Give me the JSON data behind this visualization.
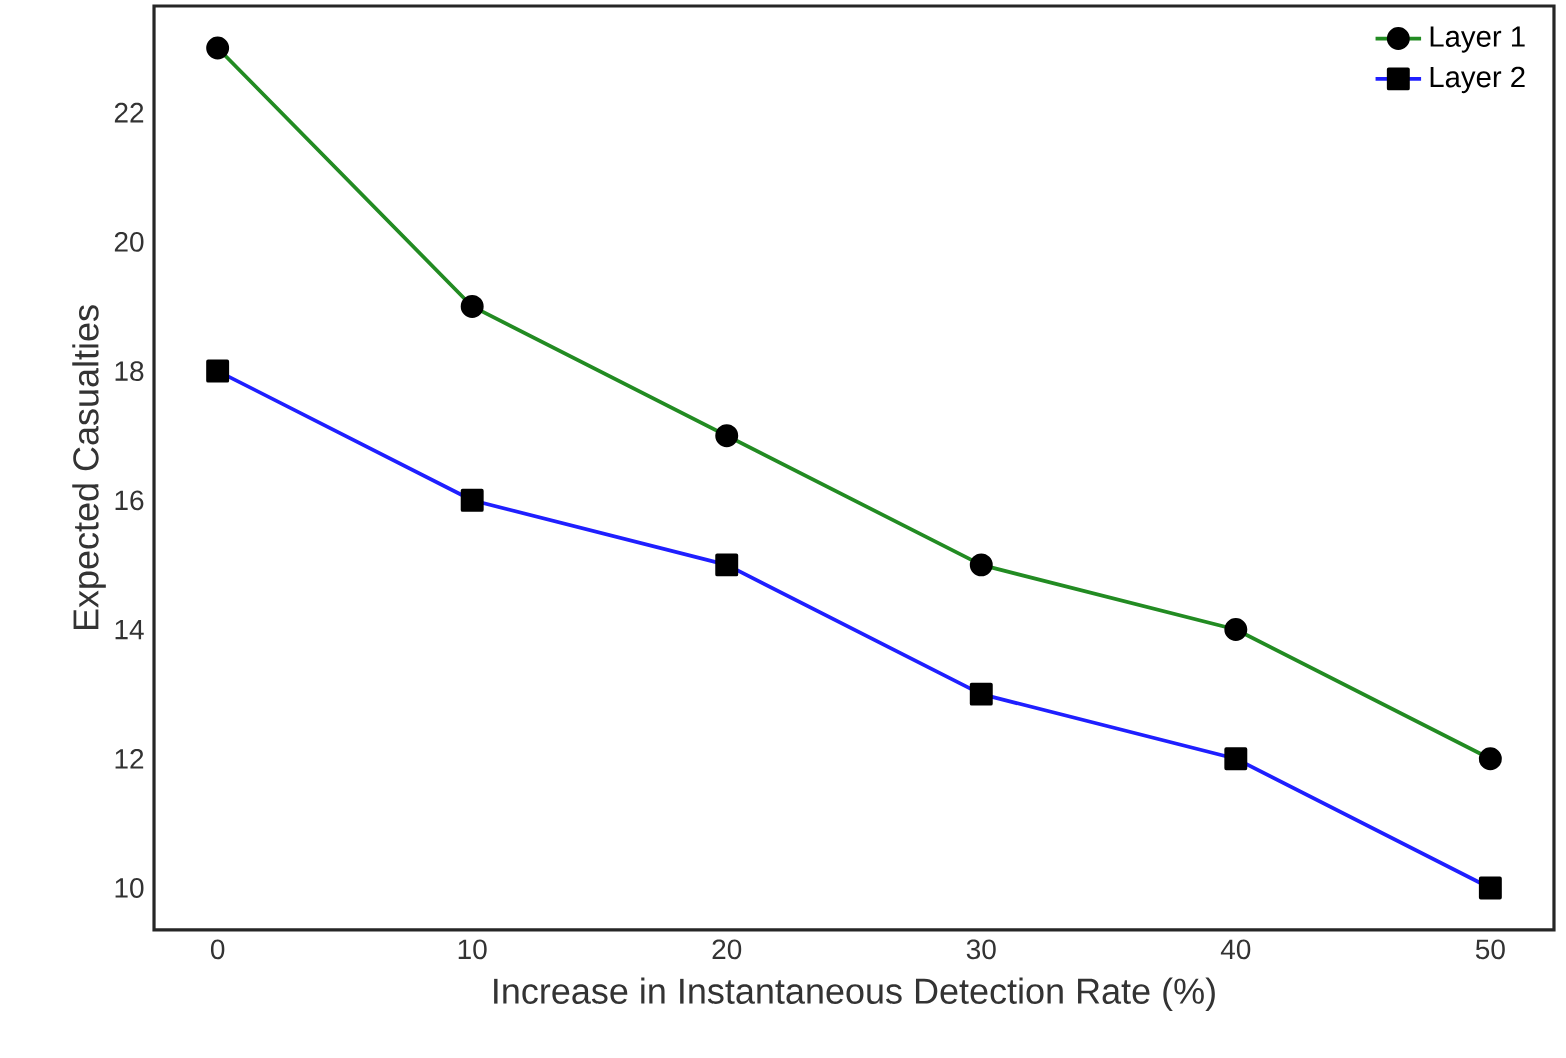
{
  "chart_data": {
    "type": "line",
    "xlabel": "Increase in Instantaneous Detection Rate (%)",
    "ylabel": "Expected Casualties",
    "x": [
      0,
      10,
      20,
      30,
      40,
      50
    ],
    "series": [
      {
        "name": "Layer 1",
        "color": "#228b22",
        "marker": "circle",
        "values": [
          23,
          19,
          17,
          15,
          14,
          12
        ]
      },
      {
        "name": "Layer 2",
        "color": "#1f1fff",
        "marker": "square",
        "values": [
          18,
          16,
          15,
          13,
          12,
          10
        ]
      }
    ],
    "xlim": [
      -2.5,
      52.5
    ],
    "ylim": [
      9.35,
      23.65
    ],
    "xticks": [
      0,
      10,
      20,
      30,
      40,
      50
    ],
    "yticks": [
      10,
      12,
      14,
      16,
      18,
      20,
      22
    ],
    "grid": false,
    "legend": "top right",
    "line_style": "solid"
  }
}
